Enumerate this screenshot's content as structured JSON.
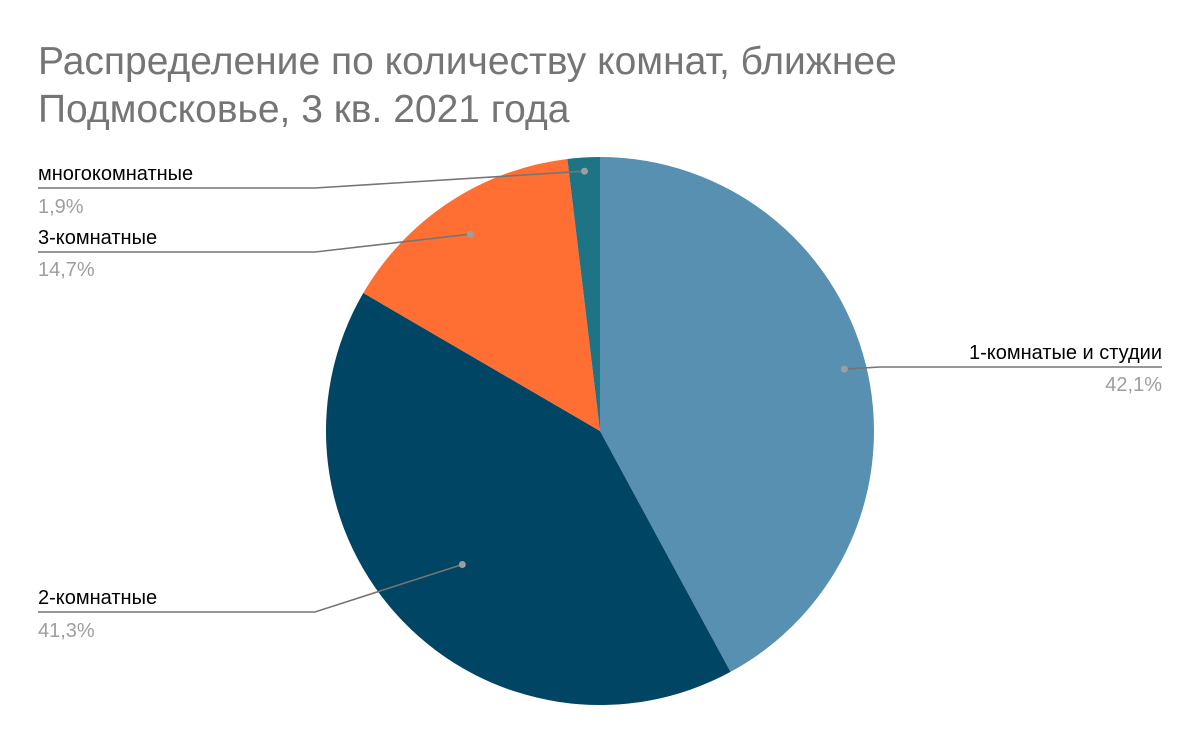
{
  "chart": {
    "title_line1": "Распределение по количеству комнат, ближнее",
    "title_line2": "Подмосковье, 3 кв. 2021 года"
  },
  "chart_data": {
    "type": "pie",
    "title": "Распределение по количеству комнат, ближнее Подмосковье, 3 кв. 2021 года",
    "start_angle_deg": 0,
    "direction": "clockwise",
    "slices": [
      {
        "label": "1-комнатые и студии",
        "value": 42.1,
        "value_label": "42,1%",
        "color": "#5790b0"
      },
      {
        "label": "2-комнатные",
        "value": 41.3,
        "value_label": "41,3%",
        "color": "#004563"
      },
      {
        "label": "3-комнатные",
        "value": 14.7,
        "value_label": "14,7%",
        "color": "#ff6e33"
      },
      {
        "label": "многокомнатные",
        "value": 1.9,
        "value_label": "1,9%",
        "color": "#1e7485"
      }
    ],
    "legend": "none",
    "label_line_color": "#757575"
  }
}
